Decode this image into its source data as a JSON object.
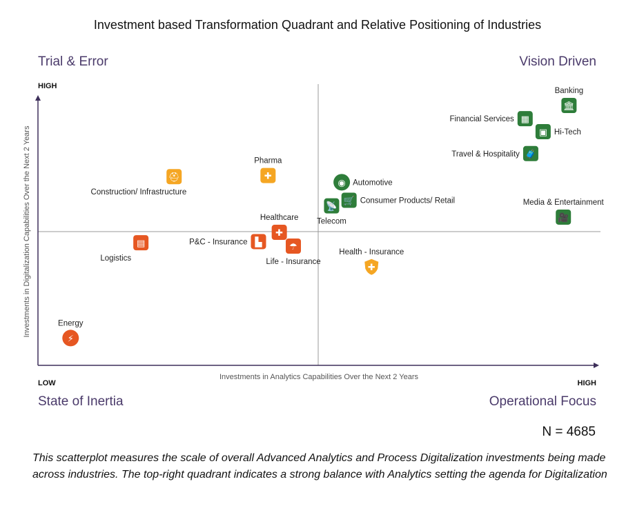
{
  "title": "Investment based Transformation Quadrant and Relative Positioning of Industries",
  "quadrants": {
    "top_left": "Trial & Error",
    "top_right": "Vision Driven",
    "bottom_left": "State of Inertia",
    "bottom_right": "Operational Focus"
  },
  "sample_size": "N = 4685",
  "caption": "This scatterplot measures the scale of overall Advanced Analytics and Process Digitalization investments being made across industries. The top-right quadrant indicates a strong balance with Analytics setting the agenda for Digitalization",
  "colors": {
    "trial_error": "#f5a623",
    "inertia": "#e65722",
    "vision": "#2e7d3a",
    "operational": "#f5a623",
    "axis": "#3d2f5a",
    "divider": "#999999"
  },
  "chart_data": {
    "type": "scatter",
    "title": "Investment based Transformation Quadrant and Relative Positioning of Industries",
    "xlabel": "Investments in Analytics Capabilities Over the Next 2 Years",
    "ylabel": "Investments in Digitalization Capabilities Over the Next 2 Years",
    "x_low_label": "LOW",
    "x_high_label": "HIGH",
    "y_high_label": "HIGH",
    "xlim": [
      0,
      100
    ],
    "ylim": [
      0,
      100
    ],
    "grid": false,
    "points": [
      {
        "name": "Banking",
        "x": 94.4,
        "y": 92.4,
        "icon": "bank-icon",
        "color": "#2e7d3a",
        "label_pos": "above"
      },
      {
        "name": "Financial Services",
        "x": 86.6,
        "y": 87.7,
        "icon": "calculator-icon",
        "color": "#2e7d3a",
        "label_pos": "left"
      },
      {
        "name": "Hi-Tech",
        "x": 89.8,
        "y": 83.1,
        "icon": "chip-icon",
        "color": "#2e7d3a",
        "label_pos": "right"
      },
      {
        "name": "Travel & Hospitality",
        "x": 87.6,
        "y": 75.3,
        "icon": "luggage-icon",
        "color": "#2e7d3a",
        "label_pos": "left"
      },
      {
        "name": "Media & Entertainment",
        "x": 93.4,
        "y": 52.7,
        "icon": "video-camera-icon",
        "color": "#2e7d3a",
        "label_pos": "above"
      },
      {
        "name": "Automotive",
        "x": 54.0,
        "y": 65.1,
        "icon": "steering-wheel-icon",
        "color": "#2e7d3a",
        "label_pos": "right"
      },
      {
        "name": "Consumer Products/ Retail",
        "x": 55.3,
        "y": 58.7,
        "icon": "shopping-cart-icon",
        "color": "#2e7d3a",
        "label_pos": "right"
      },
      {
        "name": "Telecom",
        "x": 52.2,
        "y": 56.7,
        "icon": "satellite-dish-icon",
        "color": "#2e7d3a",
        "label_pos": "below"
      },
      {
        "name": "Health - Insurance",
        "x": 59.3,
        "y": 35.1,
        "icon": "shield-plus-icon",
        "color": "#f5a623",
        "label_pos": "above"
      },
      {
        "name": "Pharma",
        "x": 40.9,
        "y": 67.5,
        "icon": "hand-plus-icon",
        "color": "#f5a623",
        "label_pos": "above"
      },
      {
        "name": "Construction/ Infrastructure",
        "x": 24.2,
        "y": 67.1,
        "icon": "hard-hat-icon",
        "color": "#f5a623",
        "label_pos": "below-left"
      },
      {
        "name": "Healthcare",
        "x": 42.9,
        "y": 47.3,
        "icon": "hand-cross-icon",
        "color": "#e65722",
        "label_pos": "above"
      },
      {
        "name": "P&C - Insurance",
        "x": 39.2,
        "y": 44.0,
        "icon": "car-home-icon",
        "color": "#e65722",
        "label_pos": "left"
      },
      {
        "name": "Life - Insurance",
        "x": 45.4,
        "y": 42.4,
        "icon": "umbrella-family-icon",
        "color": "#e65722",
        "label_pos": "below"
      },
      {
        "name": "Logistics",
        "x": 18.3,
        "y": 43.6,
        "icon": "package-icon",
        "color": "#e65722",
        "label_pos": "below-left"
      },
      {
        "name": "Energy",
        "x": 5.8,
        "y": 9.7,
        "icon": "lightning-icon",
        "color": "#e65722",
        "label_pos": "above"
      }
    ]
  }
}
